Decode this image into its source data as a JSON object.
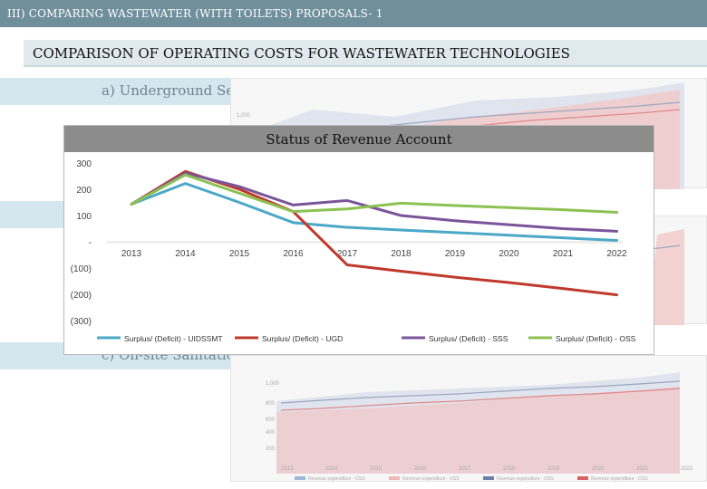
{
  "header": {
    "section_title": "III) COMPARING WASTEWATER (WITH TOILETS) PROPOSALS- 1",
    "banner_title": "COMPARISON  OF  OPERATING  COSTS  FOR  WASTEWATER  TECHNOLOGIES"
  },
  "subsections": {
    "a": "a) Underground Sewerage System",
    "c": "c) On-site Sanitation System"
  },
  "colors": {
    "topbar": "#6f8f9c",
    "uidssmt": "#4aa8c8",
    "ugd": "#c0392b",
    "sss": "#7b559a",
    "oss": "#8cc152"
  },
  "chart_data": {
    "type": "line",
    "title": "Status of Revenue Account",
    "x": [
      "2013",
      "2014",
      "2015",
      "2016",
      "2017",
      "2018",
      "2019",
      "2020",
      "2021",
      "2022"
    ],
    "y_ticks": [
      "300",
      "200",
      "100",
      "-",
      "(100)",
      "(200)",
      "(300)"
    ],
    "ylim": [
      -300,
      300
    ],
    "grid": false,
    "legend_position": "bottom",
    "series": [
      {
        "name": "Surplus/ (Deficit) - UIDSSMT",
        "color": "#4aa8c8",
        "values": [
          143,
          222,
          150,
          73,
          55,
          45,
          35,
          25,
          15,
          5
        ]
      },
      {
        "name": "Surplus/ (Deficit) - UGD",
        "color": "#c0392b",
        "values": [
          143,
          268,
          200,
          115,
          -88,
          -112,
          -135,
          -155,
          -178,
          -202
        ]
      },
      {
        "name": "Surplus/ (Deficit) - SSS",
        "color": "#7b559a",
        "values": [
          143,
          262,
          210,
          140,
          157,
          100,
          80,
          65,
          50,
          40
        ]
      },
      {
        "name": "Surplus/ (Deficit) - OSS",
        "color": "#8cc152",
        "values": [
          143,
          255,
          185,
          115,
          125,
          147,
          138,
          130,
          122,
          112
        ]
      }
    ]
  },
  "bg_charts": {
    "y_ticks_top": [
      "1,000"
    ],
    "y_ticks_bottom": [
      "1,000",
      "800",
      "600",
      "400",
      "200"
    ],
    "x_labels": [
      "2013",
      "2014",
      "2015",
      "2016",
      "2017",
      "2018",
      "2019",
      "2020",
      "2021",
      "2022"
    ],
    "legend": [
      "Revenue expenditure - OSS",
      "Revenue expenditure - OSS",
      "Revenue expenditure - OSS",
      "Revenue expenditure - OSS"
    ]
  }
}
